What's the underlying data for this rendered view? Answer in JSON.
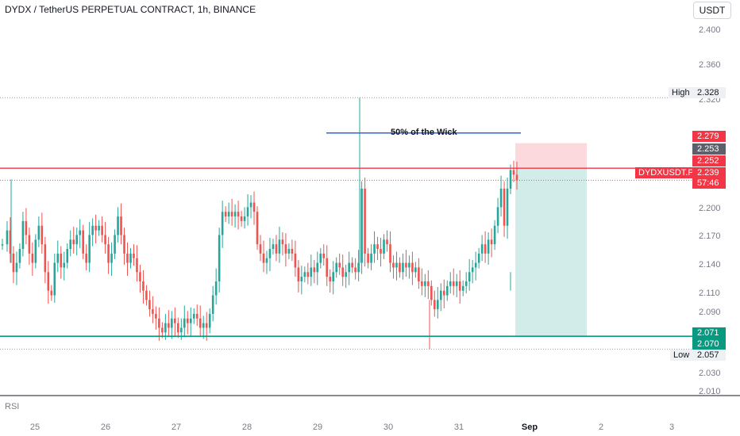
{
  "header": {
    "title": "DYDX / TetherUS PERPETUAL CONTRACT, 1h, BINANCE",
    "currency_button": "USDT"
  },
  "indicator_pane": {
    "label": "RSI"
  },
  "annotation": {
    "text": "50% of the Wick"
  },
  "price_labels": {
    "high_label": "High",
    "high_value": "2.328",
    "low_label": "Low",
    "low_value": "2.057",
    "stop": "2.279",
    "entry_gray": "2.253",
    "resistance": "2.252",
    "symbol": "DYDXUSDT.P",
    "last": "2.239",
    "countdown": "57:46",
    "target": "2.071",
    "support": "2.070"
  },
  "colors": {
    "up": "#26a69a",
    "down": "#ef5350",
    "resistance_line": "#f23645",
    "support_line": "#089981",
    "wick_line": "#2962ff",
    "stop_zone": "#fcd9dc",
    "target_zone": "#d2ede9"
  },
  "chart_data": {
    "type": "candlestick",
    "title": "DYDX / TetherUS PERPETUAL CONTRACT, 1h, BINANCE",
    "y_ticks": [
      "2.400",
      "2.360",
      "2.320",
      "2.200",
      "2.170",
      "2.140",
      "2.110",
      "2.090",
      "2.030",
      "2.010"
    ],
    "x_ticks": [
      "25",
      "26",
      "27",
      "28",
      "29",
      "30",
      "31",
      "Sep",
      "2",
      "3"
    ],
    "ylim": [
      2.01,
      2.41
    ],
    "levels": {
      "high": 2.328,
      "low": 2.057,
      "resistance": 2.252,
      "support": 2.07,
      "last": 2.239,
      "wick_50": 2.29,
      "stop": 2.279,
      "target": 2.071
    },
    "close_path": [
      [
        0,
        2.17
      ],
      [
        6,
        2.185
      ],
      [
        10,
        2.16
      ],
      [
        14,
        2.14
      ],
      [
        18,
        2.15
      ],
      [
        22,
        2.165
      ],
      [
        26,
        2.195
      ],
      [
        30,
        2.18
      ],
      [
        34,
        2.16
      ],
      [
        38,
        2.15
      ],
      [
        42,
        2.175
      ],
      [
        46,
        2.19
      ],
      [
        50,
        2.17
      ],
      [
        54,
        2.14
      ],
      [
        58,
        2.12
      ],
      [
        62,
        2.115
      ],
      [
        66,
        2.15
      ],
      [
        70,
        2.16
      ],
      [
        74,
        2.145
      ],
      [
        78,
        2.15
      ],
      [
        82,
        2.165
      ],
      [
        86,
        2.175
      ],
      [
        90,
        2.17
      ],
      [
        94,
        2.18
      ],
      [
        98,
        2.185
      ],
      [
        102,
        2.16
      ],
      [
        106,
        2.15
      ],
      [
        110,
        2.18
      ],
      [
        114,
        2.19
      ],
      [
        118,
        2.185
      ],
      [
        122,
        2.19
      ],
      [
        126,
        2.18
      ],
      [
        130,
        2.17
      ],
      [
        134,
        2.15
      ],
      [
        138,
        2.16
      ],
      [
        142,
        2.18
      ],
      [
        146,
        2.2
      ],
      [
        150,
        2.18
      ],
      [
        154,
        2.16
      ],
      [
        158,
        2.15
      ],
      [
        162,
        2.16
      ],
      [
        166,
        2.155
      ],
      [
        170,
        2.14
      ],
      [
        174,
        2.13
      ],
      [
        178,
        2.12
      ],
      [
        182,
        2.11
      ],
      [
        186,
        2.1
      ],
      [
        190,
        2.095
      ],
      [
        194,
        2.09
      ],
      [
        198,
        2.08
      ],
      [
        202,
        2.075
      ],
      [
        206,
        2.085
      ],
      [
        210,
        2.08
      ],
      [
        214,
        2.09
      ],
      [
        218,
        2.085
      ],
      [
        222,
        2.075
      ],
      [
        226,
        2.08
      ],
      [
        230,
        2.09
      ],
      [
        234,
        2.085
      ],
      [
        238,
        2.09
      ],
      [
        242,
        2.095
      ],
      [
        246,
        2.09
      ],
      [
        250,
        2.08
      ],
      [
        254,
        2.085
      ],
      [
        258,
        2.08
      ],
      [
        262,
        2.095
      ],
      [
        266,
        2.115
      ],
      [
        270,
        2.13
      ],
      [
        274,
        2.18
      ],
      [
        278,
        2.205
      ],
      [
        282,
        2.2
      ],
      [
        286,
        2.205
      ],
      [
        290,
        2.2
      ],
      [
        294,
        2.205
      ],
      [
        298,
        2.2
      ],
      [
        302,
        2.195
      ],
      [
        306,
        2.2
      ],
      [
        310,
        2.21
      ],
      [
        314,
        2.215
      ],
      [
        318,
        2.205
      ],
      [
        322,
        2.17
      ],
      [
        326,
        2.16
      ],
      [
        330,
        2.15
      ],
      [
        334,
        2.155
      ],
      [
        338,
        2.165
      ],
      [
        342,
        2.17
      ],
      [
        346,
        2.16
      ],
      [
        350,
        2.175
      ],
      [
        354,
        2.17
      ],
      [
        358,
        2.16
      ],
      [
        362,
        2.165
      ],
      [
        366,
        2.16
      ],
      [
        370,
        2.145
      ],
      [
        374,
        2.13
      ],
      [
        378,
        2.135
      ],
      [
        382,
        2.14
      ],
      [
        386,
        2.135
      ],
      [
        390,
        2.145
      ],
      [
        394,
        2.14
      ],
      [
        398,
        2.15
      ],
      [
        402,
        2.16
      ],
      [
        406,
        2.155
      ],
      [
        410,
        2.135
      ],
      [
        414,
        2.13
      ],
      [
        418,
        2.14
      ],
      [
        422,
        2.15
      ],
      [
        426,
        2.145
      ],
      [
        430,
        2.135
      ],
      [
        434,
        2.14
      ],
      [
        438,
        2.15
      ],
      [
        442,
        2.145
      ],
      [
        446,
        2.14
      ],
      [
        450,
        2.15
      ],
      [
        454,
        2.23
      ],
      [
        458,
        2.16
      ],
      [
        462,
        2.15
      ],
      [
        466,
        2.16
      ],
      [
        470,
        2.17
      ],
      [
        474,
        2.165
      ],
      [
        478,
        2.16
      ],
      [
        482,
        2.175
      ],
      [
        486,
        2.17
      ],
      [
        490,
        2.15
      ],
      [
        494,
        2.145
      ],
      [
        498,
        2.15
      ],
      [
        502,
        2.14
      ],
      [
        506,
        2.15
      ],
      [
        510,
        2.145
      ],
      [
        514,
        2.15
      ],
      [
        518,
        2.14
      ],
      [
        522,
        2.145
      ],
      [
        526,
        2.13
      ],
      [
        530,
        2.125
      ],
      [
        534,
        2.13
      ],
      [
        538,
        2.125
      ],
      [
        542,
        2.11
      ],
      [
        546,
        2.1
      ],
      [
        550,
        2.11
      ],
      [
        554,
        2.12
      ],
      [
        558,
        2.115
      ],
      [
        562,
        2.125
      ],
      [
        566,
        2.13
      ],
      [
        570,
        2.125
      ],
      [
        574,
        2.13
      ],
      [
        578,
        2.12
      ],
      [
        582,
        2.125
      ],
      [
        586,
        2.13
      ],
      [
        590,
        2.14
      ],
      [
        594,
        2.145
      ],
      [
        598,
        2.15
      ],
      [
        602,
        2.16
      ],
      [
        606,
        2.17
      ],
      [
        610,
        2.16
      ],
      [
        614,
        2.175
      ],
      [
        618,
        2.17
      ],
      [
        622,
        2.19
      ],
      [
        626,
        2.21
      ],
      [
        630,
        2.23
      ],
      [
        634,
        2.19
      ],
      [
        638,
        2.23
      ],
      [
        642,
        2.25
      ],
      [
        646,
        2.245
      ],
      [
        650,
        2.239
      ]
    ]
  }
}
